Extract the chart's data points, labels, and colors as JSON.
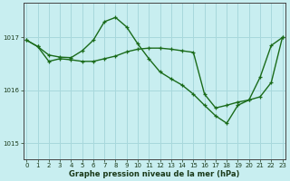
{
  "line1_x": [
    0,
    1,
    2,
    3,
    4,
    5,
    6,
    7,
    8,
    9,
    10,
    11,
    12,
    13,
    14,
    15,
    16,
    17,
    18,
    19,
    20,
    21,
    22,
    23
  ],
  "line1_y": [
    1016.95,
    1016.83,
    1016.67,
    1016.63,
    1016.62,
    1016.75,
    1016.95,
    1017.3,
    1017.38,
    1017.2,
    1016.88,
    1016.6,
    1016.35,
    1016.22,
    1016.1,
    1015.93,
    1015.72,
    1015.52,
    1015.38,
    1015.72,
    1015.82,
    1016.25,
    1016.85,
    1017.0
  ],
  "line2_x": [
    0,
    1,
    2,
    3,
    4,
    5,
    6,
    7,
    8,
    9,
    10,
    11,
    12,
    13,
    14,
    15,
    16,
    17,
    18,
    19,
    20,
    21,
    22,
    23
  ],
  "line2_y": [
    1016.95,
    1016.83,
    1016.55,
    1016.6,
    1016.58,
    1016.55,
    1016.55,
    1016.6,
    1016.65,
    1016.73,
    1016.78,
    1016.8,
    1016.8,
    1016.78,
    1016.75,
    1016.72,
    1015.93,
    1015.67,
    1015.72,
    1015.78,
    1015.82,
    1015.88,
    1016.15,
    1017.0
  ],
  "line_color": "#1a6b1a",
  "bg_color": "#c8eef0",
  "grid_color": "#a8d8dc",
  "xlabel": "Graphe pression niveau de la mer (hPa)",
  "ylim": [
    1014.7,
    1017.65
  ],
  "yticks": [
    1015,
    1016,
    1017
  ],
  "xlim": [
    -0.3,
    23.3
  ],
  "xticks": [
    0,
    1,
    2,
    3,
    4,
    5,
    6,
    7,
    8,
    9,
    10,
    11,
    12,
    13,
    14,
    15,
    16,
    17,
    18,
    19,
    20,
    21,
    22,
    23
  ]
}
